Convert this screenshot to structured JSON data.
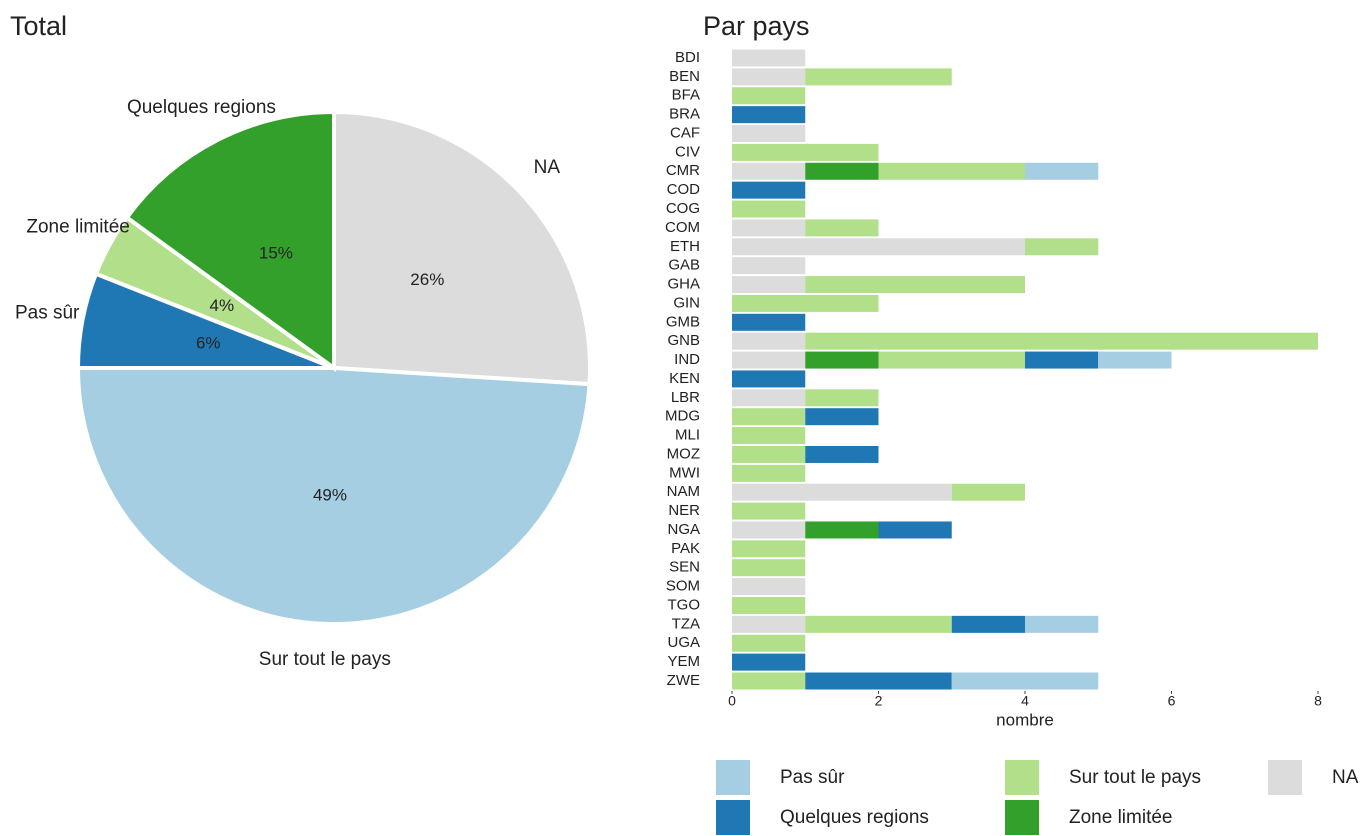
{
  "chart_data": [
    {
      "type": "pie",
      "title": "Total",
      "labels": [
        "NA",
        "Sur tout le pays",
        "Pas sûr",
        "Zone limitée",
        "Quelques regions"
      ],
      "values": [
        26,
        49,
        6,
        4,
        15
      ],
      "value_labels": [
        "26%",
        "49%",
        "6%",
        "4%",
        "15%"
      ],
      "colors": [
        "#dcdcdc",
        "#a6cee3",
        "#1f78b4",
        "#b2df8a",
        "#33a02c"
      ]
    },
    {
      "type": "bar",
      "orientation": "horizontal",
      "stacked": true,
      "title": "Par pays",
      "xlabel": "nombre",
      "categories": [
        "BDI",
        "BEN",
        "BFA",
        "BRA",
        "CAF",
        "CIV",
        "CMR",
        "COD",
        "COG",
        "COM",
        "ETH",
        "GAB",
        "GHA",
        "GIN",
        "GMB",
        "GNB",
        "IND",
        "KEN",
        "LBR",
        "MDG",
        "MLI",
        "MOZ",
        "MWI",
        "NAM",
        "NER",
        "NGA",
        "PAK",
        "SEN",
        "SOM",
        "TGO",
        "TZA",
        "UGA",
        "YEM",
        "ZWE"
      ],
      "series": [
        {
          "name": "Pas sûr",
          "color": "#a6cee3",
          "values": [
            0,
            0,
            0,
            0,
            0,
            0,
            1,
            0,
            0,
            0,
            0,
            0,
            0,
            0,
            0,
            0,
            1,
            0,
            0,
            0,
            0,
            0,
            0,
            0,
            0,
            0,
            0,
            0,
            0,
            0,
            1,
            0,
            0,
            2
          ]
        },
        {
          "name": "Quelques regions",
          "color": "#1f78b4",
          "values": [
            0,
            0,
            0,
            1,
            0,
            0,
            0,
            1,
            0,
            0,
            0,
            0,
            0,
            0,
            1,
            0,
            1,
            1,
            0,
            1,
            0,
            1,
            0,
            0,
            0,
            1,
            0,
            0,
            0,
            0,
            1,
            0,
            1,
            2
          ]
        },
        {
          "name": "Sur tout le pays",
          "color": "#b2df8a",
          "values": [
            0,
            2,
            1,
            0,
            0,
            2,
            2,
            0,
            1,
            1,
            1,
            0,
            3,
            2,
            0,
            7,
            2,
            0,
            1,
            1,
            1,
            1,
            1,
            1,
            1,
            0,
            1,
            1,
            0,
            1,
            2,
            1,
            0,
            1
          ]
        },
        {
          "name": "Zone limitée",
          "color": "#33a02c",
          "values": [
            0,
            0,
            0,
            0,
            0,
            0,
            1,
            0,
            0,
            0,
            0,
            0,
            0,
            0,
            0,
            0,
            1,
            0,
            0,
            0,
            0,
            0,
            0,
            0,
            0,
            1,
            0,
            0,
            0,
            0,
            0,
            0,
            0,
            0
          ]
        },
        {
          "name": "NA",
          "color": "#dcdcdc",
          "values": [
            1,
            1,
            0,
            0,
            1,
            0,
            1,
            0,
            0,
            1,
            4,
            1,
            1,
            0,
            0,
            1,
            1,
            0,
            1,
            0,
            0,
            0,
            0,
            3,
            0,
            1,
            0,
            0,
            1,
            0,
            1,
            0,
            0,
            0
          ]
        }
      ],
      "xlim": [
        0,
        8
      ],
      "xticks": [
        0,
        2,
        4,
        6,
        8
      ]
    }
  ]
}
